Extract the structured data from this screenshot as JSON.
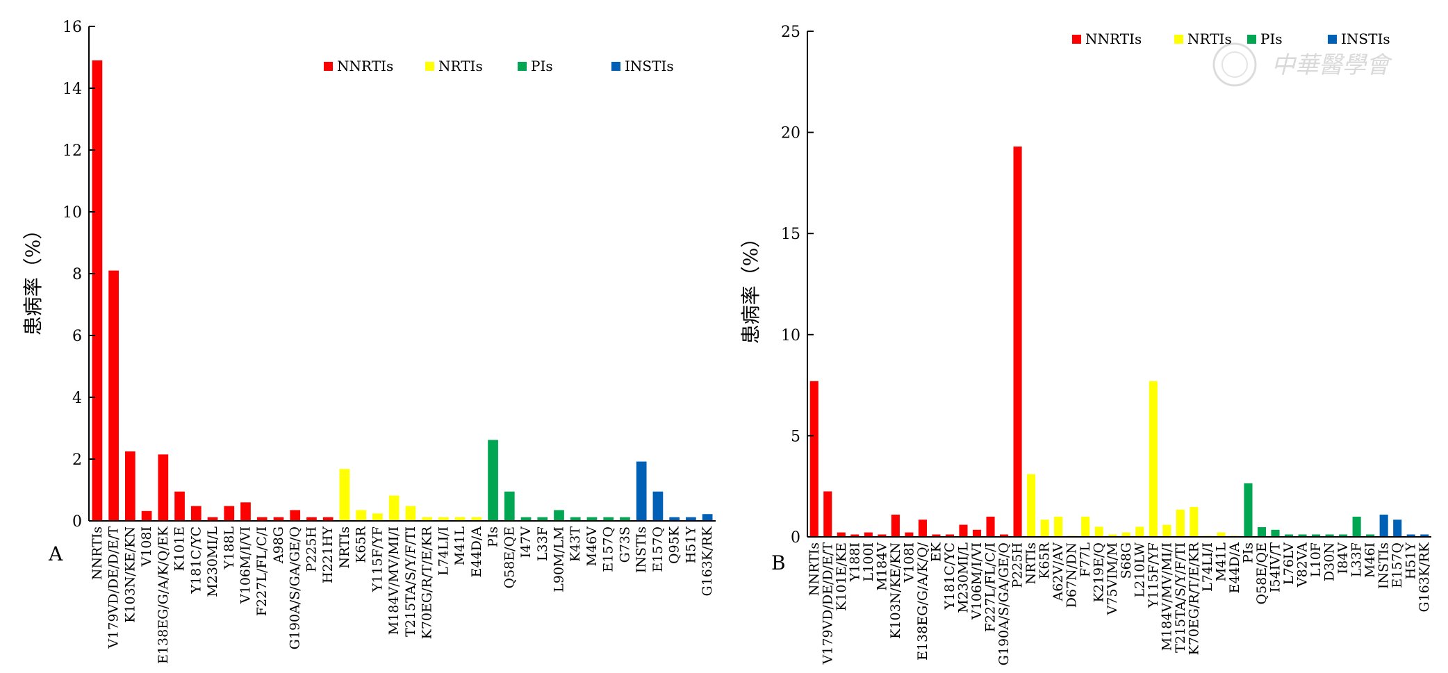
{
  "colors": {
    "NNRTIs": "#ff0000",
    "NRTIs": "#ffff00",
    "PIs": "#00a651",
    "INSTIs": "#0060b6"
  },
  "watermark": "中華醫學會",
  "chart_data": [
    {
      "panel": "A",
      "type": "bar",
      "ylabel": "患病率（%）",
      "ylim": [
        0,
        16
      ],
      "yticks": [
        0,
        2,
        4,
        6,
        8,
        10,
        12,
        14,
        16
      ],
      "legend": [
        "NNRTIs",
        "NRTIs",
        "PIs",
        "INSTIs"
      ],
      "legend_position": "top-center",
      "categories": [
        "NNRTIs",
        "V179VD/DE/D/E/T",
        "K103N/KE/KN",
        "V108I",
        "E138EG/G/A/K/Q/EK",
        "K101E",
        "Y181C/YC",
        "M230MI/L",
        "Y188L",
        "V106M/I/VI",
        "F227L/FL/C/I",
        "A98G",
        "G190A/S/GA/GE/Q",
        "P225H",
        "H221HY",
        "NRTIs",
        "K65R",
        "Y115F/YF",
        "M184V/MV/MI/I",
        "T215TA/S/Y/F/TI",
        "K70EG/R/T/E/KR",
        "L74LI/I",
        "M41L",
        "E44D/A",
        "PIs",
        "Q58E/QE",
        "I47V",
        "L33F",
        "L90M/LM",
        "K43T",
        "M46V",
        "E157Q",
        "G73S",
        "INSTIs",
        "E157Q",
        "Q95K",
        "H51Y",
        "G163K/RK"
      ],
      "groups": [
        "NNRTIs",
        "NNRTIs",
        "NNRTIs",
        "NNRTIs",
        "NNRTIs",
        "NNRTIs",
        "NNRTIs",
        "NNRTIs",
        "NNRTIs",
        "NNRTIs",
        "NNRTIs",
        "NNRTIs",
        "NNRTIs",
        "NNRTIs",
        "NNRTIs",
        "NRTIs",
        "NRTIs",
        "NRTIs",
        "NRTIs",
        "NRTIs",
        "NRTIs",
        "NRTIs",
        "NRTIs",
        "NRTIs",
        "PIs",
        "PIs",
        "PIs",
        "PIs",
        "PIs",
        "PIs",
        "PIs",
        "PIs",
        "PIs",
        "INSTIs",
        "INSTIs",
        "INSTIs",
        "INSTIs",
        "INSTIs"
      ],
      "values": [
        14.9,
        8.1,
        2.25,
        0.32,
        2.15,
        0.95,
        0.48,
        0.12,
        0.48,
        0.6,
        0.12,
        0.12,
        0.35,
        0.12,
        0.12,
        1.68,
        0.35,
        0.24,
        0.82,
        0.48,
        0.12,
        0.12,
        0.12,
        0.12,
        2.62,
        0.95,
        0.12,
        0.12,
        0.35,
        0.12,
        0.12,
        0.12,
        0.12,
        1.92,
        0.95,
        0.12,
        0.12,
        0.22
      ]
    },
    {
      "panel": "B",
      "type": "bar",
      "ylabel": "患病率（%）",
      "ylim": [
        0,
        25
      ],
      "yticks": [
        0,
        5,
        10,
        15,
        20,
        25
      ],
      "legend": [
        "NNRTIs",
        "NRTIs",
        "PIs",
        "INSTIs"
      ],
      "legend_position": "top-right",
      "categories": [
        "NNRTIs",
        "V179VD/DE/D/E/T",
        "K101E/KE",
        "Y188I",
        "L100I",
        "M184V",
        "K103N/KE/KN",
        "V108I",
        "E138EG/G/A/K/Q/",
        "EK",
        "Y181C/YC",
        "M230MI/L",
        "V106M/I/VI",
        "F227L/FL/C/I",
        "G190A/S/GA/GE/Q",
        "P225H",
        "NRTIs",
        "K65R",
        "A62V/AV",
        "D67N/DN",
        "F77L",
        "K219E/Q",
        "V75VIM/M",
        "S68G",
        "L210LW",
        "Y115F/YF",
        "M184V/MV/MI/I",
        "T215TA/S/Y/F/TI",
        "K70EG/R/T/E/KR",
        "L74LI/I",
        "M41L",
        "E44D/A",
        "PIs",
        "Q58E/QE",
        "I54IV/T",
        "L76LV",
        "V82VA",
        "L10F",
        "D30N",
        "I84V",
        "L33F",
        "M46I",
        "INSTIs",
        "E157Q",
        "H51Y",
        "G163K/RK"
      ],
      "groups": [
        "NNRTIs",
        "NNRTIs",
        "NNRTIs",
        "NNRTIs",
        "NNRTIs",
        "NNRTIs",
        "NNRTIs",
        "NNRTIs",
        "NNRTIs",
        "NNRTIs",
        "NNRTIs",
        "NNRTIs",
        "NNRTIs",
        "NNRTIs",
        "NNRTIs",
        "NNRTIs",
        "NRTIs",
        "NRTIs",
        "NRTIs",
        "NRTIs",
        "NRTIs",
        "NRTIs",
        "NRTIs",
        "NRTIs",
        "NRTIs",
        "NRTIs",
        "NRTIs",
        "NRTIs",
        "NRTIs",
        "NRTIs",
        "NRTIs",
        "NRTIs",
        "PIs",
        "PIs",
        "PIs",
        "PIs",
        "PIs",
        "PIs",
        "PIs",
        "PIs",
        "PIs",
        "PIs",
        "INSTIs",
        "INSTIs",
        "INSTIs",
        "INSTIs"
      ],
      "values": [
        7.7,
        2.25,
        0.22,
        0.12,
        0.22,
        0.12,
        1.1,
        0.22,
        0.85,
        0.12,
        0.12,
        0.6,
        0.35,
        1.0,
        0.12,
        19.3,
        3.1,
        0.85,
        1.0,
        0.05,
        1.0,
        0.5,
        0.12,
        0.22,
        0.5,
        7.7,
        0.6,
        1.35,
        1.48,
        0.05,
        0.22,
        0.05,
        2.65,
        0.48,
        0.35,
        0.12,
        0.12,
        0.12,
        0.12,
        0.12,
        1.0,
        0.12,
        1.1,
        0.85,
        0.12,
        0.12
      ]
    }
  ]
}
